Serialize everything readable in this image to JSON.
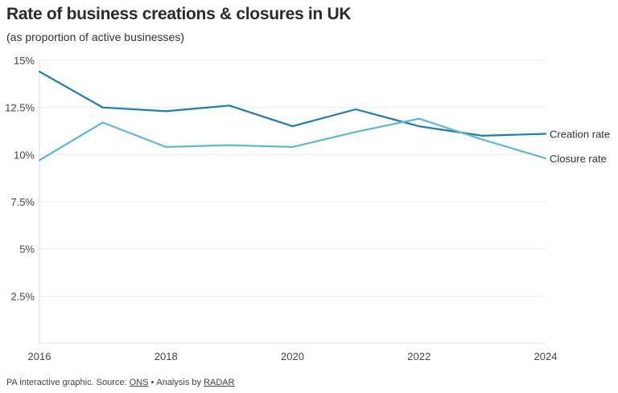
{
  "header": {
    "title": "Rate of business creations & closures in UK",
    "subtitle": "(as proportion of active businesses)"
  },
  "footer": {
    "prefix": "PA interactive graphic. Source: ",
    "source_link": "ONS",
    "separator": "•",
    "analysis_prefix": "Analysis by ",
    "analysis_link": "RADAR"
  },
  "chart_data": {
    "type": "line",
    "title": "Rate of business creations & closures in UK",
    "subtitle": "(as proportion of active businesses)",
    "x": [
      2016,
      2017,
      2018,
      2019,
      2020,
      2021,
      2022,
      2023,
      2024
    ],
    "xticks": [
      "2016",
      "2018",
      "2020",
      "2022",
      "2024"
    ],
    "yticks": [
      "15%",
      "12.5%",
      "10%",
      "7.5%",
      "5%",
      "2.5%"
    ],
    "ylim": [
      0,
      15
    ],
    "xlim": [
      2016,
      2024
    ],
    "grid": true,
    "legend": "direct labels at line ends",
    "series": [
      {
        "name": "Creation rate",
        "color": "#1a7db3",
        "values": [
          14.4,
          12.5,
          12.3,
          12.6,
          11.5,
          12.4,
          11.5,
          11.0,
          11.1
        ]
      },
      {
        "name": "Closure rate",
        "color": "#5bb8d9",
        "values": [
          9.7,
          11.7,
          10.4,
          10.5,
          10.4,
          11.2,
          11.9,
          10.8,
          9.8
        ]
      }
    ]
  }
}
